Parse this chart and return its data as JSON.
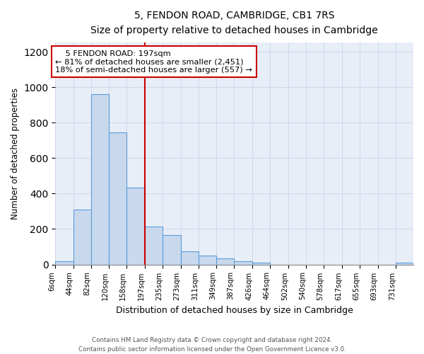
{
  "title": "5, FENDON ROAD, CAMBRIDGE, CB1 7RS",
  "subtitle": "Size of property relative to detached houses in Cambridge",
  "xlabel": "Distribution of detached houses by size in Cambridge",
  "ylabel": "Number of detached properties",
  "footnote1": "Contains HM Land Registry data © Crown copyright and database right 2024.",
  "footnote2": "Contains public sector information licensed under the Open Government Licence v3.0.",
  "annotation_title": "5 FENDON ROAD: 197sqm",
  "annotation_line1": "← 81% of detached houses are smaller (2,451)",
  "annotation_line2": "18% of semi-detached houses are larger (557) →",
  "bar_edges": [
    6,
    44,
    82,
    120,
    158,
    197,
    235,
    273,
    311,
    349,
    387,
    426,
    464,
    502,
    540,
    578,
    617,
    655,
    693,
    731,
    769
  ],
  "bar_heights": [
    20,
    310,
    960,
    745,
    435,
    215,
    165,
    75,
    50,
    35,
    20,
    10,
    0,
    0,
    0,
    0,
    0,
    0,
    0,
    10
  ],
  "bar_color": "#c8d9ee",
  "bar_edge_color": "#5b9bd5",
  "vline_x": 197,
  "vline_color": "#cc0000",
  "ylim": [
    0,
    1250
  ],
  "yticks": [
    0,
    200,
    400,
    600,
    800,
    1000,
    1200
  ],
  "annotation_box_color": "#cc0000",
  "grid_color": "#d0d8e8",
  "bg_color": "#e8eef8"
}
